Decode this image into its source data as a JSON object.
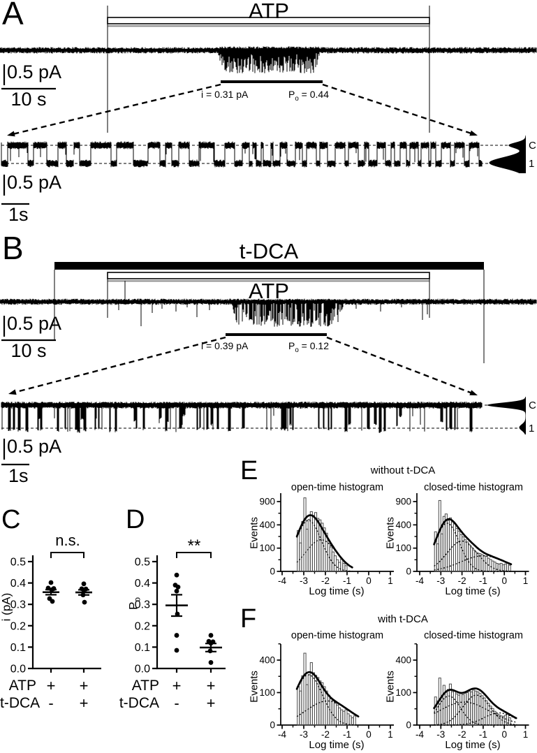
{
  "figure": {
    "panel_a": {
      "letter": "A",
      "drug_label": "ATP",
      "scale_current": "0.5 pA",
      "scale_time": "10 s",
      "unitary_current": "i = 0.31 pA",
      "po_label": "P",
      "po_sub": "o",
      "po_value": " = 0.44",
      "closed_label": "C",
      "open_label": "1",
      "zoom_scale_current": "0.5 pA",
      "zoom_scale_time": "1s"
    },
    "panel_b": {
      "letter": "B",
      "bile_acid_label": "t-DCA",
      "drug_label": "ATP",
      "scale_current": "0.5 pA",
      "scale_time": "10 s",
      "unitary_current": "i = 0.39 pA",
      "po_label": "P",
      "po_sub": "o",
      "po_value": " = 0.12",
      "closed_label": "C",
      "open_label": "1",
      "zoom_scale_current": "0.5 pA",
      "zoom_scale_time": "1s"
    },
    "panel_c": {
      "letter": "C",
      "significance": "n.s.",
      "y_axis_label": "i (pA)",
      "row1_label": "ATP",
      "row2_label": "t-DCA"
    },
    "panel_d": {
      "letter": "D",
      "significance": "**",
      "y_axis_label_main": "P",
      "y_axis_label_sub": "o",
      "row1_label": "ATP",
      "row2_label": "t-DCA"
    },
    "panel_e": {
      "letter": "E",
      "condition": "without t-DCA",
      "open_title": "open-time histogram",
      "closed_title": "closed-time histogram",
      "y_axis_label": "Events",
      "x_axis_label": "Log time (s)"
    },
    "panel_f": {
      "letter": "F",
      "condition": "with t-DCA",
      "open_title": "open-time histogram",
      "closed_title": "closed-time histogram",
      "y_axis_label": "Events",
      "x_axis_label": "Log time (s)"
    }
  },
  "chart_data": {
    "trace_a": {
      "type": "line",
      "description": "single-channel current trace during ATP application, with expanded segment",
      "application_bars": [
        {
          "label": "ATP",
          "style": "open"
        }
      ],
      "i_pA": 0.31,
      "po": 0.44,
      "scale": {
        "current": "0.5 pA",
        "time": "10 s"
      },
      "zoom_scale": {
        "current": "0.5 pA",
        "time": "1s"
      },
      "levels": [
        "C",
        "1"
      ]
    },
    "trace_b": {
      "type": "line",
      "description": "single-channel current trace during t-DCA plus ATP application, with expanded segment",
      "application_bars": [
        {
          "label": "t-DCA",
          "style": "filled"
        },
        {
          "label": "ATP",
          "style": "open"
        }
      ],
      "i_pA": 0.39,
      "po": 0.12,
      "scale": {
        "current": "0.5 pA",
        "time": "10 s"
      },
      "zoom_scale": {
        "current": "0.5 pA",
        "time": "1s"
      },
      "levels": [
        "C",
        "1"
      ]
    },
    "scatter_i": {
      "type": "scatter",
      "ylabel": "i (pA)",
      "ylim": [
        0,
        0.5
      ],
      "yticks": [
        0,
        0.1,
        0.2,
        0.3,
        0.4,
        0.5
      ],
      "significance": "n.s.",
      "row_labels": [
        "ATP",
        "t-DCA"
      ],
      "groups": [
        {
          "atp": "+",
          "tdca": "-",
          "mean": 0.357,
          "sem": 0.012,
          "points": [
            [
              0,
              0.402
            ],
            [
              -4,
              0.376
            ],
            [
              4,
              0.374
            ],
            [
              1,
              0.368
            ],
            [
              -2,
              0.327
            ],
            [
              2,
              0.314
            ]
          ]
        },
        {
          "atp": "+",
          "tdca": "+",
          "mean": 0.356,
          "sem": 0.012,
          "points": [
            [
              0,
              0.396
            ],
            [
              -3,
              0.373
            ],
            [
              3,
              0.372
            ],
            [
              0,
              0.367
            ],
            [
              -1,
              0.344
            ],
            [
              1,
              0.31
            ]
          ]
        }
      ]
    },
    "scatter_po": {
      "type": "scatter",
      "ylabel": "Po",
      "ylim": [
        0,
        0.5
      ],
      "yticks": [
        0,
        0.1,
        0.2,
        0.3,
        0.4,
        0.5
      ],
      "significance": "**",
      "row_labels": [
        "ATP",
        "t-DCA"
      ],
      "groups": [
        {
          "atp": "+",
          "tdca": "-",
          "mean": 0.295,
          "sem": 0.05,
          "points": [
            [
              0,
              0.437
            ],
            [
              -2,
              0.39
            ],
            [
              2,
              0.381
            ],
            [
              0,
              0.362
            ],
            [
              1,
              0.255
            ],
            [
              0,
              0.155
            ],
            [
              0,
              0.085
            ]
          ]
        },
        {
          "atp": "+",
          "tdca": "+",
          "mean": 0.098,
          "sem": 0.019,
          "points": [
            [
              0,
              0.155
            ],
            [
              -3,
              0.127
            ],
            [
              3,
              0.125
            ],
            [
              0,
              0.118
            ],
            [
              -1,
              0.082
            ],
            [
              0,
              0.028
            ]
          ]
        }
      ]
    },
    "dwell_histograms": [
      {
        "condition": "without t-DCA",
        "plots": [
          {
            "title": "open-time histogram",
            "type": "bar",
            "xlabel": "Log time (s)",
            "ylabel": "Events",
            "x_ticks": [
              -4,
              -3,
              -2,
              -1,
              0,
              1
            ],
            "y_ticks": [
              0,
              100,
              400,
              900
            ],
            "y_minor_ticks": [
              25,
              225,
              625
            ],
            "y_scale": "sqrt",
            "bin_start": -3.3,
            "bin_width": 0.1,
            "counts": [
              310,
              150,
              460,
              1000,
              330,
              500,
              660,
              580,
              640,
              520,
              490,
              430,
              350,
              270,
              170,
              110,
              70,
              45,
              25,
              15,
              28,
              12,
              6
            ],
            "fit_components": [
              [
                480,
                -2.78,
                0.42
              ],
              [
                185,
                -2.2,
                0.5
              ]
            ],
            "fit_end": -0.75
          },
          {
            "title": "closed-time histogram",
            "type": "bar",
            "xlabel": "Log time (s)",
            "ylabel": "Events",
            "x_ticks": [
              -4,
              -3,
              -2,
              -1,
              0,
              1
            ],
            "y_ticks": [
              0,
              100,
              400,
              900
            ],
            "y_minor_ticks": [
              25,
              225,
              625
            ],
            "y_scale": "sqrt",
            "bin_start": -3.3,
            "bin_width": 0.1,
            "counts": [
              290,
              140,
              930,
              260,
              560,
              610,
              480,
              530,
              450,
              420,
              340,
              300,
              250,
              220,
              185,
              160,
              130,
              105,
              85,
              70,
              62,
              58,
              52,
              45,
              42,
              32,
              26,
              20,
              16,
              12,
              10,
              12,
              8,
              10,
              14,
              7
            ],
            "fit_components": [
              [
                430,
                -2.7,
                0.4
              ],
              [
                170,
                -2.0,
                0.5
              ],
              [
                45,
                -1.0,
                0.75
              ]
            ],
            "fit_end": 0.35
          }
        ]
      },
      {
        "condition": "with t-DCA",
        "plots": [
          {
            "title": "open-time histogram",
            "type": "bar",
            "xlabel": "Log time (s)",
            "ylabel": "Events",
            "x_ticks": [
              -4,
              -3,
              -2,
              -1,
              0,
              1
            ],
            "y_ticks": [
              0,
              100,
              400
            ],
            "y_minor_ticks": [
              25,
              225,
              625
            ],
            "y_scale": "sqrt",
            "bin_start": -3.3,
            "bin_width": 0.1,
            "counts": [
              140,
              110,
              230,
              490,
              155,
              240,
              370,
              260,
              235,
              215,
              185,
              170,
              140,
              110,
              85,
              65,
              55,
              45,
              38,
              28,
              22,
              18,
              22,
              12,
              8,
              5,
              8
            ],
            "fit_components": [
              [
                240,
                -2.78,
                0.45
              ],
              [
                55,
                -1.9,
                0.7
              ]
            ],
            "fit_end": -0.45
          },
          {
            "title": "closed-time histogram",
            "type": "bar",
            "xlabel": "Log time (s)",
            "ylabel": "Events",
            "x_ticks": [
              -4,
              -3,
              -2,
              -1,
              0,
              1
            ],
            "y_ticks": [
              0,
              100,
              400
            ],
            "y_minor_ticks": [
              25,
              225,
              625
            ],
            "y_scale": "sqrt",
            "bin_start": -3.3,
            "bin_width": 0.1,
            "counts": [
              75,
              55,
              210,
              70,
              150,
              105,
              120,
              160,
              105,
              110,
              92,
              85,
              95,
              88,
              96,
              100,
              108,
              104,
              116,
              110,
              104,
              95,
              82,
              70,
              56,
              45,
              34,
              26,
              18,
              13,
              10,
              8,
              7,
              9,
              11,
              5
            ],
            "fit_components": [
              [
                80,
                -2.62,
                0.38
              ],
              [
                50,
                -1.9,
                0.85
              ],
              [
                85,
                -1.32,
                0.45
              ],
              [
                14,
                -0.25,
                0.5
              ]
            ],
            "fit_end": 0.6
          }
        ]
      }
    ]
  }
}
